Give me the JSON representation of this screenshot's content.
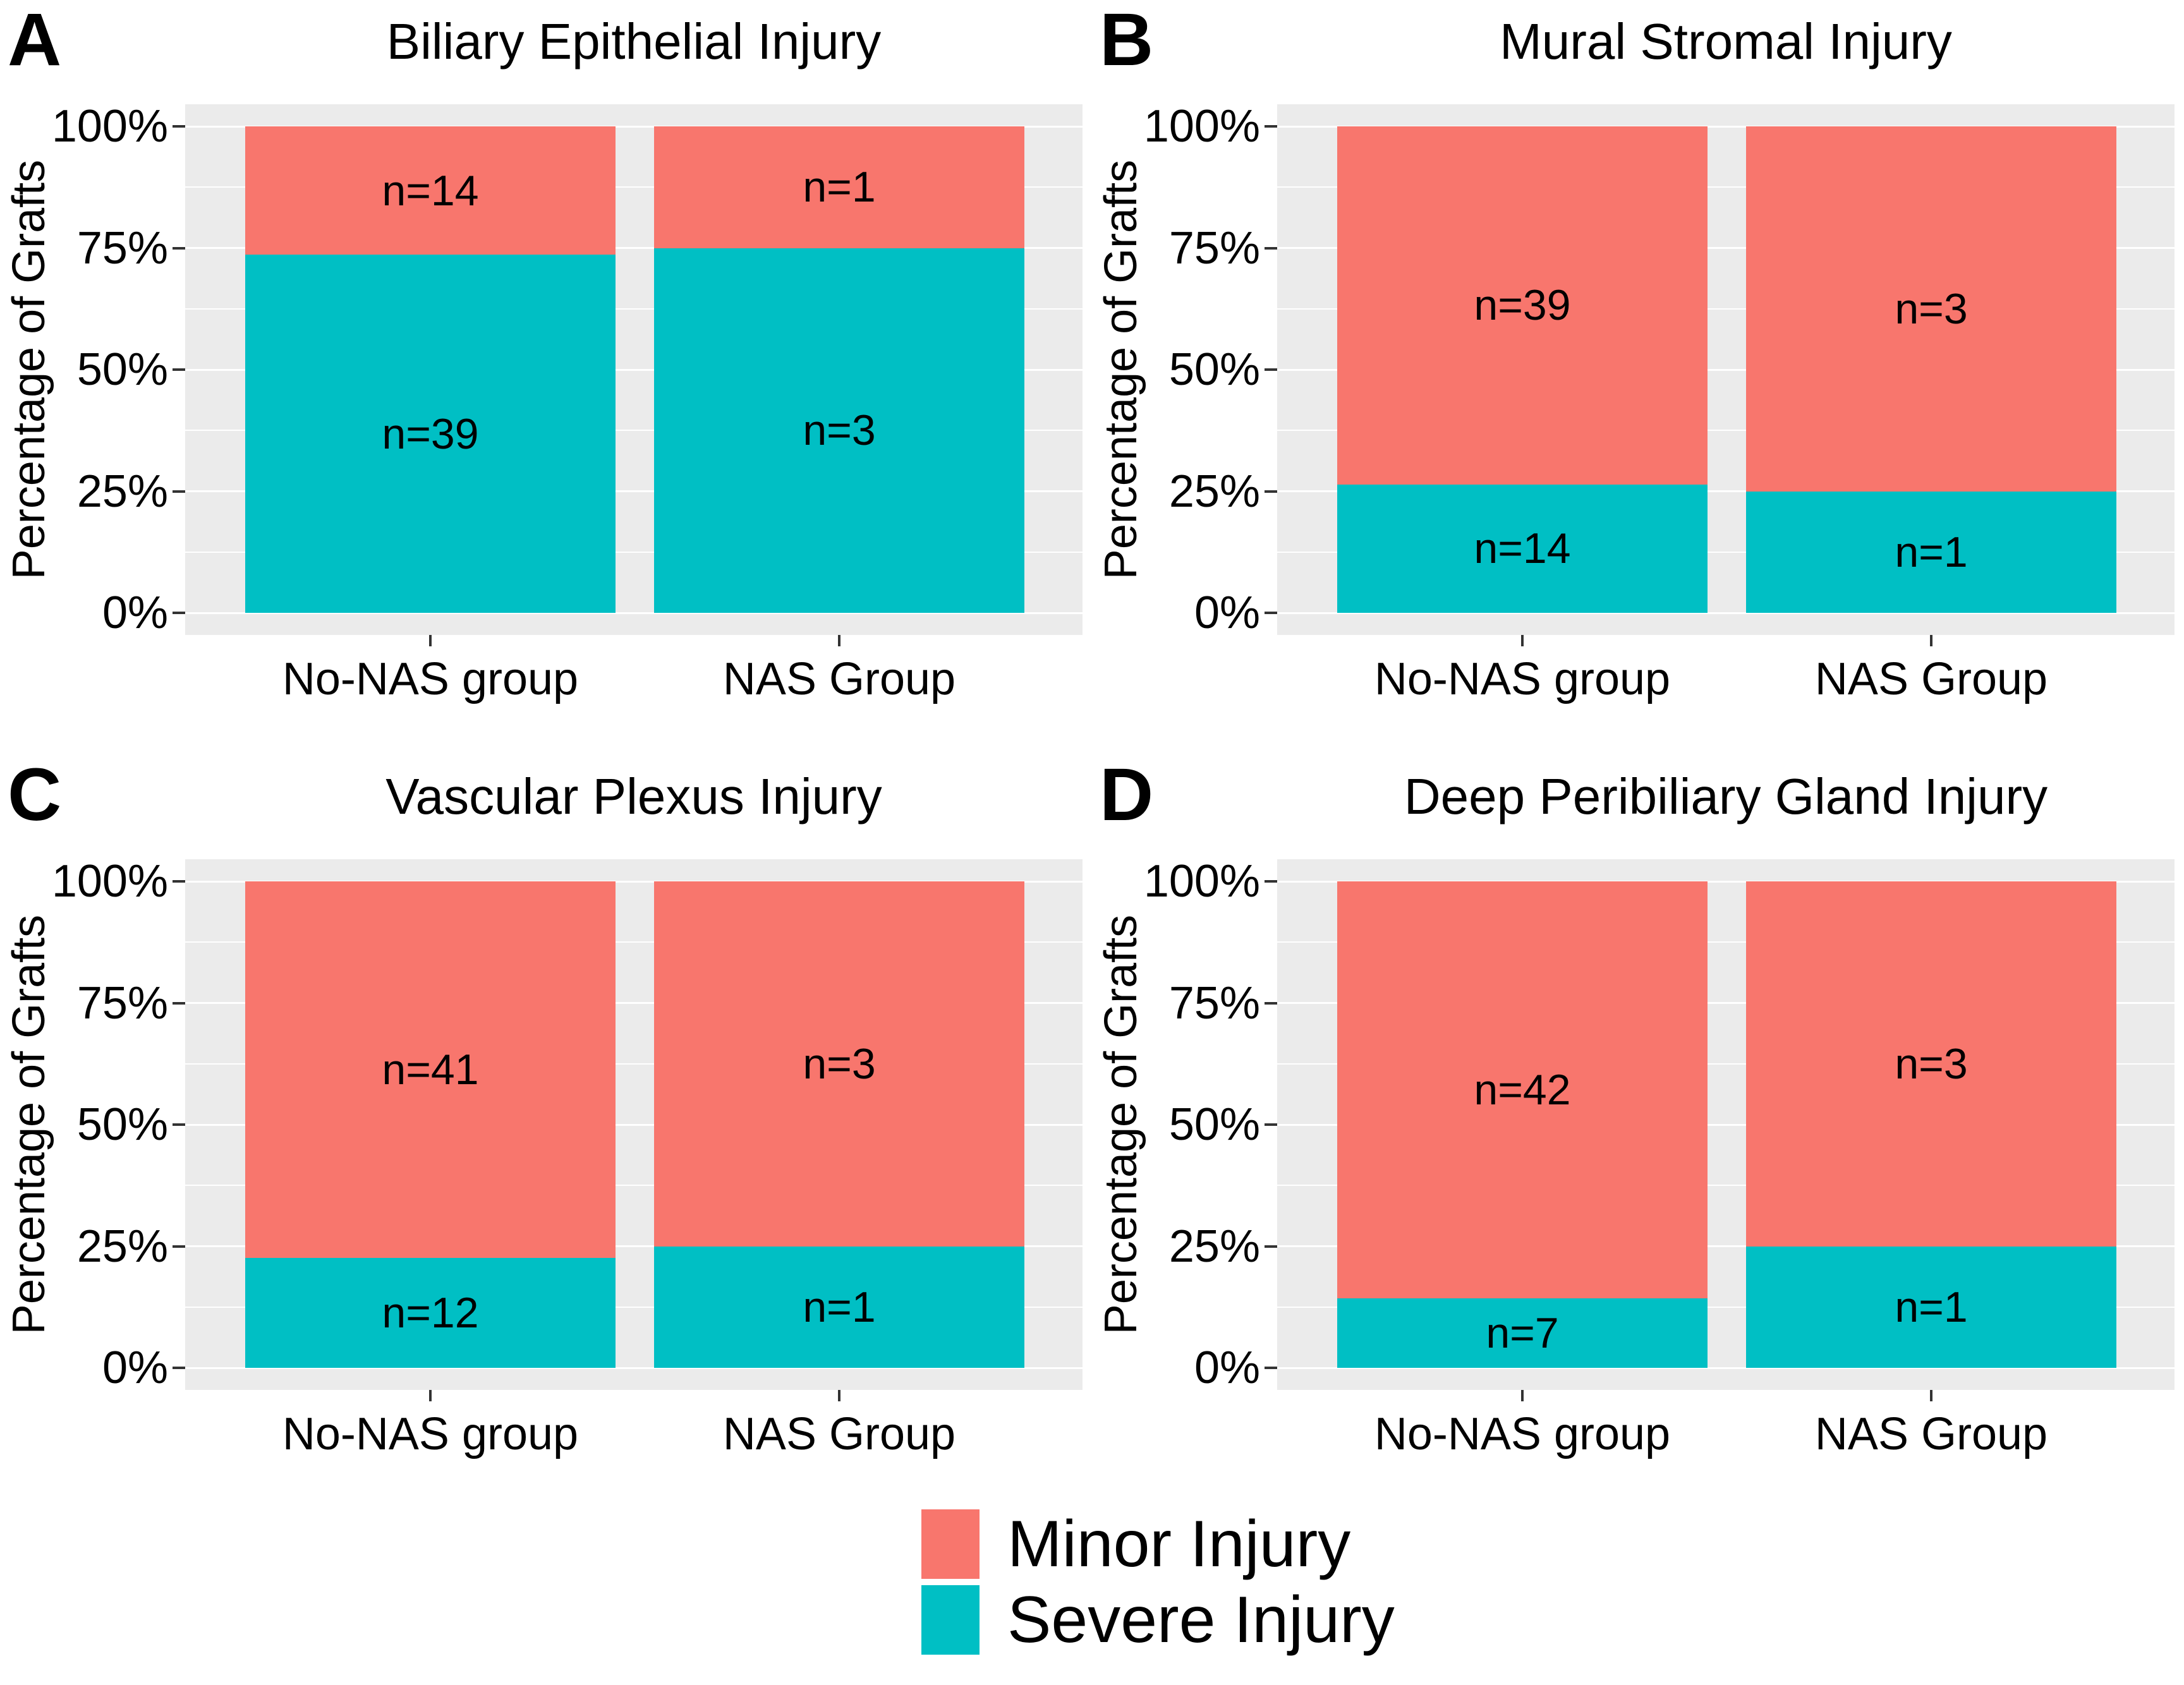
{
  "chart_data": {
    "type": "bar",
    "stacked": true,
    "unit": "percent_of_grafts",
    "ylabel": "Percentage of Grafts",
    "y_ticks": [
      "100%",
      "75%",
      "50%",
      "25%",
      "0%"
    ],
    "y_tick_values": [
      100,
      75,
      50,
      25,
      0
    ],
    "y_minor_gridlines": [
      87.5,
      62.5,
      37.5,
      12.5
    ],
    "ylim": [
      0,
      100
    ],
    "grid": "white on gray panel",
    "categories": [
      "No-NAS group",
      "NAS Group"
    ],
    "legend_position": "bottom",
    "series_order_top_to_bottom": [
      "Minor Injury",
      "Severe Injury"
    ],
    "panels": [
      {
        "letter": "A",
        "title": "Biliary Epithelial Injury",
        "bars": [
          {
            "category": "No-NAS group",
            "minor_count": 14,
            "severe_count": 39,
            "minor_label": "n=14",
            "severe_label": "n=39"
          },
          {
            "category": "NAS Group",
            "minor_count": 1,
            "severe_count": 3,
            "minor_label": "n=1",
            "severe_label": "n=3"
          }
        ]
      },
      {
        "letter": "B",
        "title": "Mural Stromal Injury",
        "bars": [
          {
            "category": "No-NAS group",
            "minor_count": 39,
            "severe_count": 14,
            "minor_label": "n=39",
            "severe_label": "n=14"
          },
          {
            "category": "NAS Group",
            "minor_count": 3,
            "severe_count": 1,
            "minor_label": "n=3",
            "severe_label": "n=1"
          }
        ]
      },
      {
        "letter": "C",
        "title": "Vascular Plexus Injury",
        "bars": [
          {
            "category": "No-NAS group",
            "minor_count": 41,
            "severe_count": 12,
            "minor_label": "n=41",
            "severe_label": "n=12"
          },
          {
            "category": "NAS Group",
            "minor_count": 3,
            "severe_count": 1,
            "minor_label": "n=3",
            "severe_label": "n=1"
          }
        ]
      },
      {
        "letter": "D",
        "title": "Deep Peribiliary Gland Injury",
        "bars": [
          {
            "category": "No-NAS group",
            "minor_count": 42,
            "severe_count": 7,
            "minor_label": "n=42",
            "severe_label": "n=7"
          },
          {
            "category": "NAS Group",
            "minor_count": 3,
            "severe_count": 1,
            "minor_label": "n=3",
            "severe_label": "n=1"
          }
        ]
      }
    ],
    "legend": {
      "entries": [
        {
          "label": "Minor Injury",
          "color": "#F8766D"
        },
        {
          "label": "Severe Injury",
          "color": "#00BFC4"
        }
      ]
    },
    "colors": {
      "minor": "#F8766D",
      "severe": "#00BFC4",
      "panel_background": "#EBEBEB",
      "gridline": "#FFFFFF",
      "text": "#000000",
      "tick": "#333333",
      "page_background": "#FFFFFF"
    }
  }
}
